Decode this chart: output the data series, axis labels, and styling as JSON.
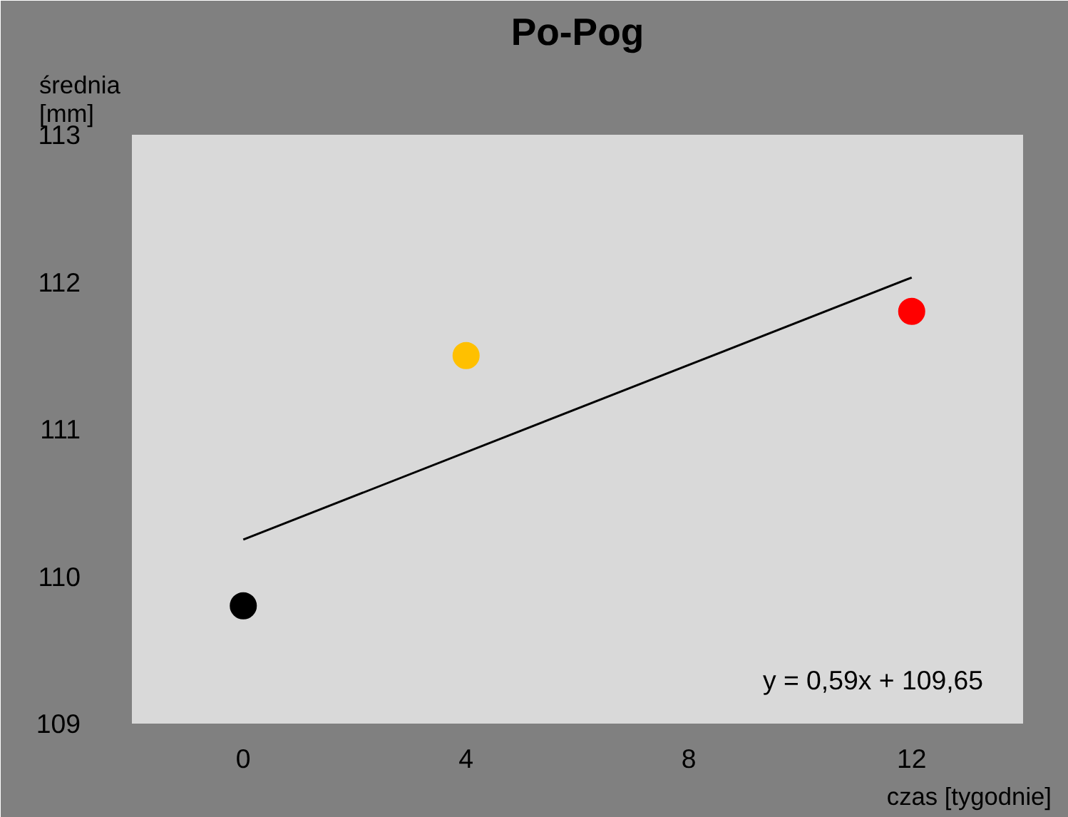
{
  "chart_data": {
    "type": "scatter",
    "title": "Po-Pog",
    "xlabel": "czas [tygodnie]",
    "ylabel": "średnia\n[mm]",
    "xlim": [
      -2,
      14
    ],
    "ylim": [
      109,
      113
    ],
    "xticks": [
      0,
      4,
      8,
      12
    ],
    "yticks": [
      109,
      110,
      111,
      112,
      113
    ],
    "grid": false,
    "series": [
      {
        "x": [
          0,
          4,
          12
        ],
        "values": [
          109.8,
          111.5,
          111.8
        ],
        "colors": [
          "#000000",
          "#ffc000",
          "#ff0000"
        ],
        "marker": "circle"
      },
      {
        "type": "line",
        "x": [
          0,
          12
        ],
        "values": [
          110.25,
          112.03
        ],
        "color": "#000000",
        "marker": "none"
      }
    ],
    "annotations": [
      "y = 0,59x + 109,65"
    ]
  }
}
